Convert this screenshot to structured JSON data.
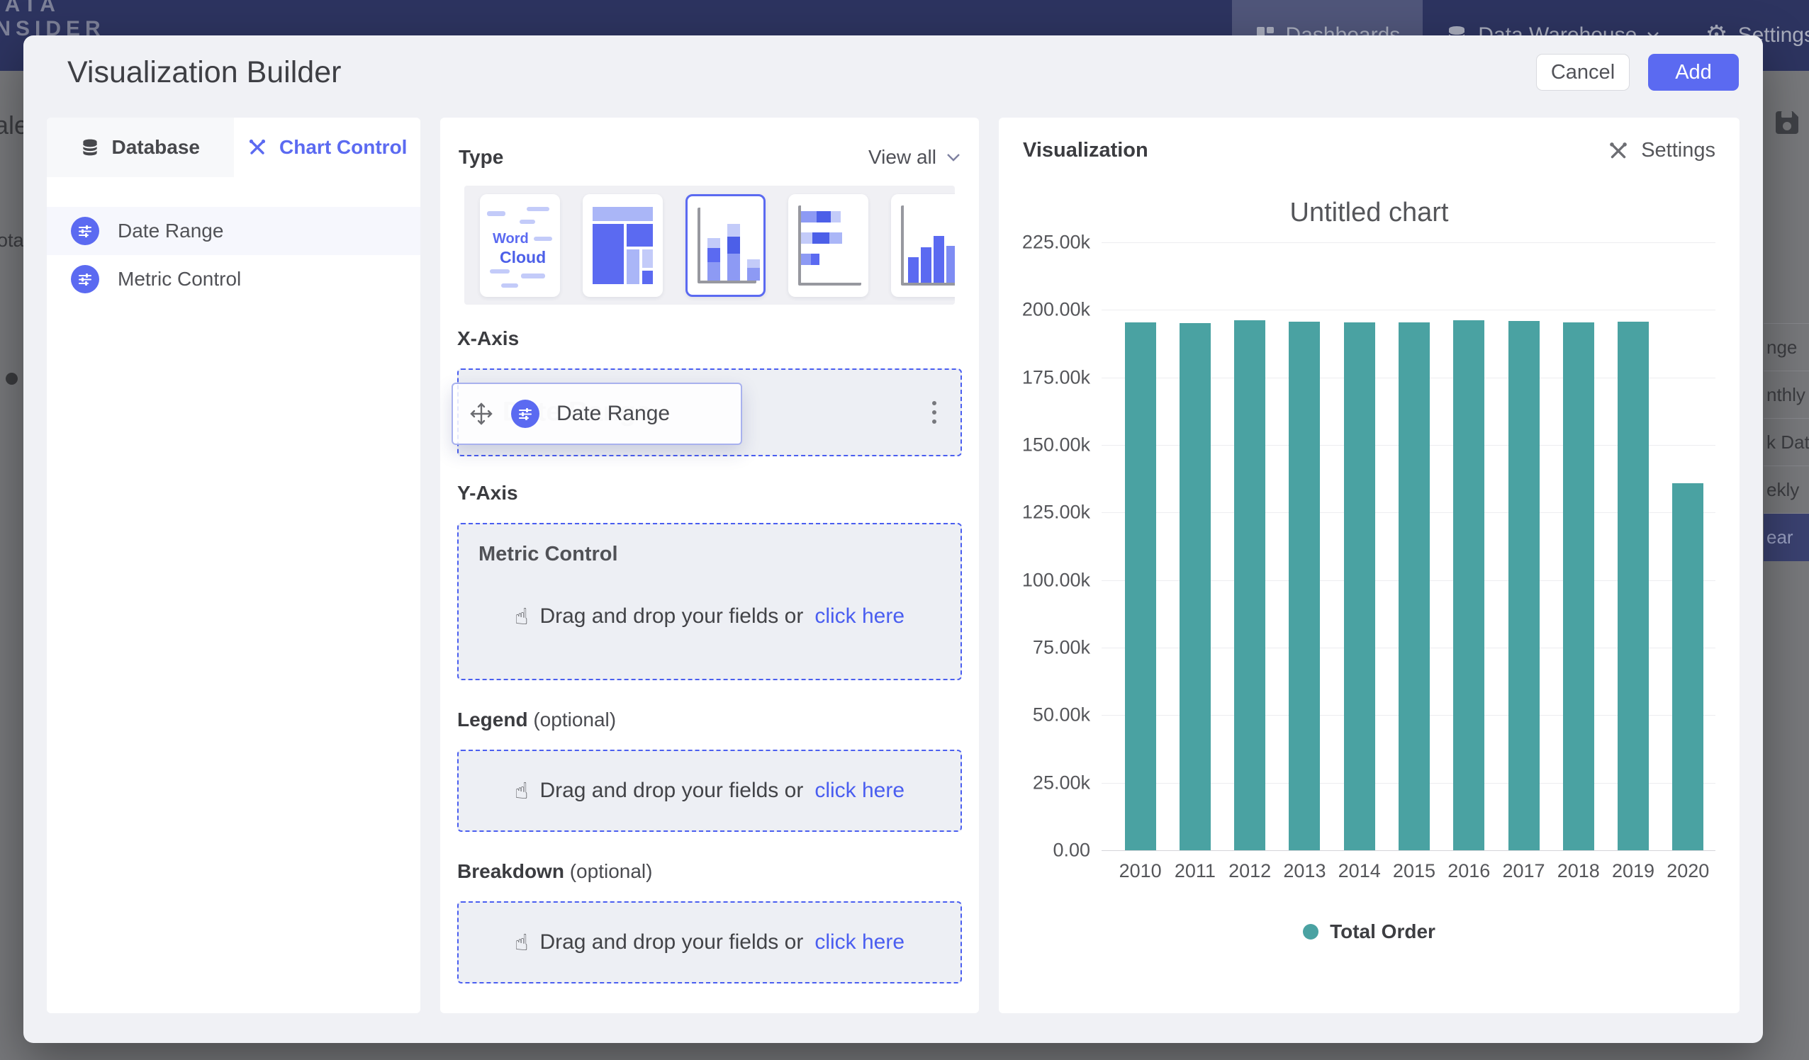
{
  "topbar": {
    "logo_line1": "DATA",
    "logo_line2": "INSIDER",
    "nav": [
      {
        "label": "Dashboards"
      },
      {
        "label": "Data Warehouse"
      },
      {
        "label": "Settings"
      }
    ]
  },
  "background": {
    "left_fragments": {
      "top": "ale",
      "mid": "ota"
    },
    "right_list": [
      "nge",
      "nthly",
      "k Date",
      "ekly",
      "ear"
    ]
  },
  "modal": {
    "title": "Visualization Builder",
    "cancel_label": "Cancel",
    "add_label": "Add"
  },
  "left_panel": {
    "tabs": [
      {
        "label": "Database"
      },
      {
        "label": "Chart Control"
      }
    ],
    "fields": [
      {
        "label": "Date Range"
      },
      {
        "label": "Metric Control"
      }
    ]
  },
  "builder": {
    "type_label": "Type",
    "view_all": "View all",
    "tile_word1": "Word",
    "tile_word2": "Cloud",
    "x_axis": {
      "label": "X-Axis",
      "ghost": "Date Range",
      "chip": "Date Range"
    },
    "y_axis": {
      "label": "Y-Axis",
      "title": "Metric Control",
      "drop_text": "Drag and drop your fields or",
      "drop_link": "click here"
    },
    "legend": {
      "label": "Legend",
      "optional": "(optional)",
      "drop_text": "Drag and drop your fields or",
      "drop_link": "click here"
    },
    "breakdown": {
      "label": "Breakdown",
      "optional": "(optional)",
      "drop_text": "Drag and drop your fields or",
      "drop_link": "click here"
    }
  },
  "visualization": {
    "header": "Visualization",
    "settings_label": "Settings"
  },
  "chart_data": {
    "type": "bar",
    "title": "Untitled chart",
    "categories": [
      "2010",
      "2011",
      "2012",
      "2013",
      "2014",
      "2015",
      "2016",
      "2017",
      "2018",
      "2019",
      "2020"
    ],
    "series": [
      {
        "name": "Total Order",
        "values": [
          195400,
          195200,
          196100,
          195700,
          195300,
          195500,
          196200,
          195800,
          195400,
          195600,
          135900
        ]
      }
    ],
    "ylim": [
      0,
      225000
    ],
    "y_ticks": [
      "225.00k",
      "200.00k",
      "175.00k",
      "150.00k",
      "125.00k",
      "100.00k",
      "75.00k",
      "50.00k",
      "25.00k",
      "0.00"
    ],
    "xlabel": "",
    "ylabel": "",
    "grid": true,
    "legend_position": "bottom",
    "bar_color": "#4AA2A2"
  },
  "colors": {
    "accent": "#5b6af1",
    "topbar_navy": "#2d3460",
    "bar_teal": "#4AA2A2"
  }
}
